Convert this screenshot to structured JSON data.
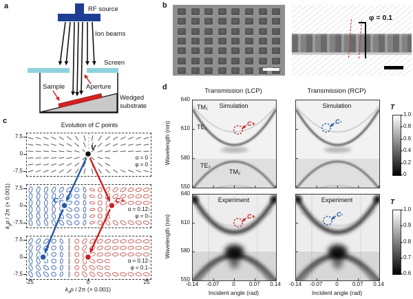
{
  "a": {
    "panel_label": "a",
    "labels": {
      "rf_source": "RF source",
      "ion_beams": "Ion beams",
      "screen": "Screen",
      "sample": "Sample",
      "aperture": "Aperture",
      "wedged_1": "Wedged",
      "wedged_2": "substrate"
    },
    "colors": {
      "rf": "#1d3e93",
      "screen": "#8fd2de",
      "sample": "#d42020",
      "wedge": "#c9c9c9",
      "annotation": "#cc2222"
    }
  },
  "b": {
    "panel_label": "b",
    "phi_label": "φ = 0.1"
  },
  "c": {
    "panel_label": "c",
    "title_pre": "Evolution of ",
    "title_c": "C",
    "title_post": " points",
    "xlabel": {
      "pre": "k",
      "sub": "x",
      "p": "p",
      "rest": " / 2π (× 0.001)"
    },
    "ylabel": {
      "pre": "k",
      "sub": "y",
      "p": "p",
      "rest": " / 2π (× 0.001)"
    },
    "y_ticks": [
      "7.5",
      "0",
      "-7.5"
    ],
    "x_ticks": [
      "-25",
      "0",
      "25"
    ],
    "point_labels": {
      "v": "V",
      "cminus": "C-",
      "cplus": "C+"
    },
    "subpanels": [
      {
        "alpha": "α = 0",
        "phi": "φ = 0"
      },
      {
        "alpha": "α = 0.12",
        "phi": "φ = 0"
      },
      {
        "alpha": "α = 0.12",
        "phi": "φ = 0.1"
      }
    ],
    "points_x": {
      "v": 0,
      "c2_minus": -10,
      "c2_plus": 10,
      "c3_minus": -19,
      "c3_plus": 0
    },
    "colors": {
      "blue": "#2457a8",
      "red": "#d21f1f",
      "blue_soft": "#4a6fb3",
      "red_soft": "#c4655e",
      "gray": "#555555"
    }
  },
  "d": {
    "panel_label": "d",
    "col_titles": [
      "Transmission (LCP)",
      "Transmission (RCP)"
    ],
    "row_labels": [
      "Simulation",
      "Experiment"
    ],
    "mode_labels": {
      "tm1": "TM₁",
      "te1": "TE₁",
      "te2": "TE₂",
      "tm2": "TM₂"
    },
    "annotations": {
      "cplus": "C+",
      "cminus": "C-"
    },
    "ylabel": "Wavelength (nm)",
    "xlabel": "Incident angle (rad)",
    "wl_ticks": [
      "640",
      "610",
      "580",
      "550"
    ],
    "angle_ticks": [
      "-0.14",
      "-0.07",
      "0",
      "0.07",
      "0.14"
    ],
    "colorbar_top": {
      "label": "T",
      "ticks": [
        "1.0",
        "0.8",
        "0.6",
        "0.4",
        "0.2",
        "0"
      ]
    },
    "colorbar_bottom": {
      "label": "T",
      "ticks": [
        "1.0",
        "0.9",
        "0.8",
        "0.7",
        "0.6"
      ]
    },
    "colors": {
      "red": "#cc2222",
      "blue": "#2457a8"
    }
  },
  "chart_data": [
    {
      "type": "scatter",
      "title": "Evolution of C points",
      "xlabel": "kx p / 2π (× 0.001)",
      "ylabel": "ky p / 2π (× 0.001)",
      "xlim": [
        -25,
        25
      ],
      "ylim": [
        -7.5,
        7.5
      ],
      "series": [
        {
          "name": "V point (α = 0, φ = 0)",
          "points": [
            [
              0,
              0
            ]
          ]
        },
        {
          "name": "C- (α = 0.12, φ = 0)",
          "points": [
            [
              -10,
              0
            ]
          ]
        },
        {
          "name": "C+ (α = 0.12, φ = 0)",
          "points": [
            [
              10,
              0
            ]
          ]
        },
        {
          "name": "C- (α = 0.12, φ = 0.1)",
          "points": [
            [
              -19,
              0
            ]
          ]
        },
        {
          "name": "C+ (α = 0.12, φ = 0.1)",
          "points": [
            [
              0,
              0
            ]
          ]
        }
      ]
    },
    {
      "type": "heatmap",
      "title": "Transmission (LCP) / Transmission (RCP), Simulation and Experiment",
      "xlabel": "Incident angle (rad)",
      "ylabel": "Wavelength (nm)",
      "xlim": [
        -0.14,
        0.14
      ],
      "ylim": [
        550,
        640
      ],
      "colorbar": {
        "label": "T",
        "simulation_range": [
          0,
          1.0
        ],
        "experiment_range": [
          0.6,
          1.0
        ]
      },
      "features": [
        "TM1/TE1 V-shaped dark band with minimum near 595 nm at normal incidence",
        "dark horizontal band near 580-585 nm",
        "TE2/TM2 inverted-V band with apex near 577 nm",
        "C+ (LCP, red) and C- (RCP, blue) circled near 610 nm at ~0 rad"
      ]
    }
  ]
}
